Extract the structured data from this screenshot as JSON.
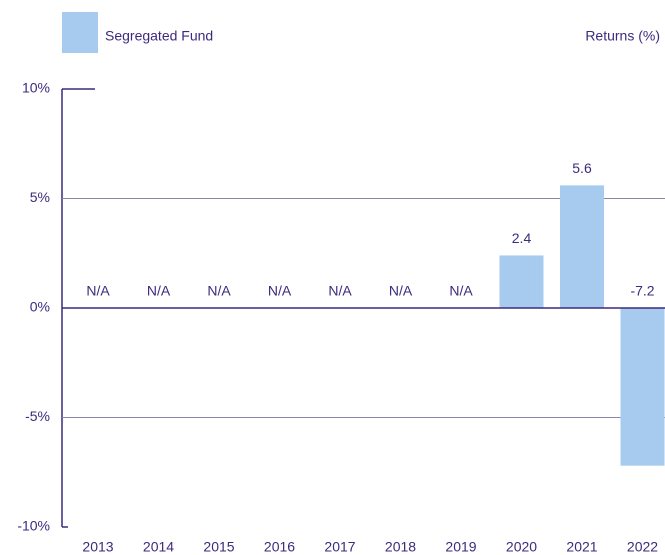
{
  "chart_data": {
    "type": "bar",
    "y_axis_label": "Returns (%)",
    "categories": [
      "2013",
      "2014",
      "2015",
      "2016",
      "2017",
      "2018",
      "2019",
      "2020",
      "2021",
      "2022"
    ],
    "series": [
      {
        "name": "Segregated Fund",
        "color": "#a6cbee",
        "values": [
          null,
          null,
          null,
          null,
          null,
          null,
          null,
          2.4,
          5.6,
          -7.2
        ],
        "value_labels": [
          "N/A",
          "N/A",
          "N/A",
          "N/A",
          "N/A",
          "N/A",
          "N/A",
          "2.4",
          "5.6",
          "-7.2"
        ]
      }
    ],
    "ylim": [
      -10,
      10
    ],
    "yticks": [
      {
        "value": -10,
        "label": "-10%"
      },
      {
        "value": -5,
        "label": "-5%"
      },
      {
        "value": 0,
        "label": "0%"
      },
      {
        "value": 5,
        "label": "5%"
      },
      {
        "value": 10,
        "label": "10%"
      }
    ],
    "grid": true
  }
}
